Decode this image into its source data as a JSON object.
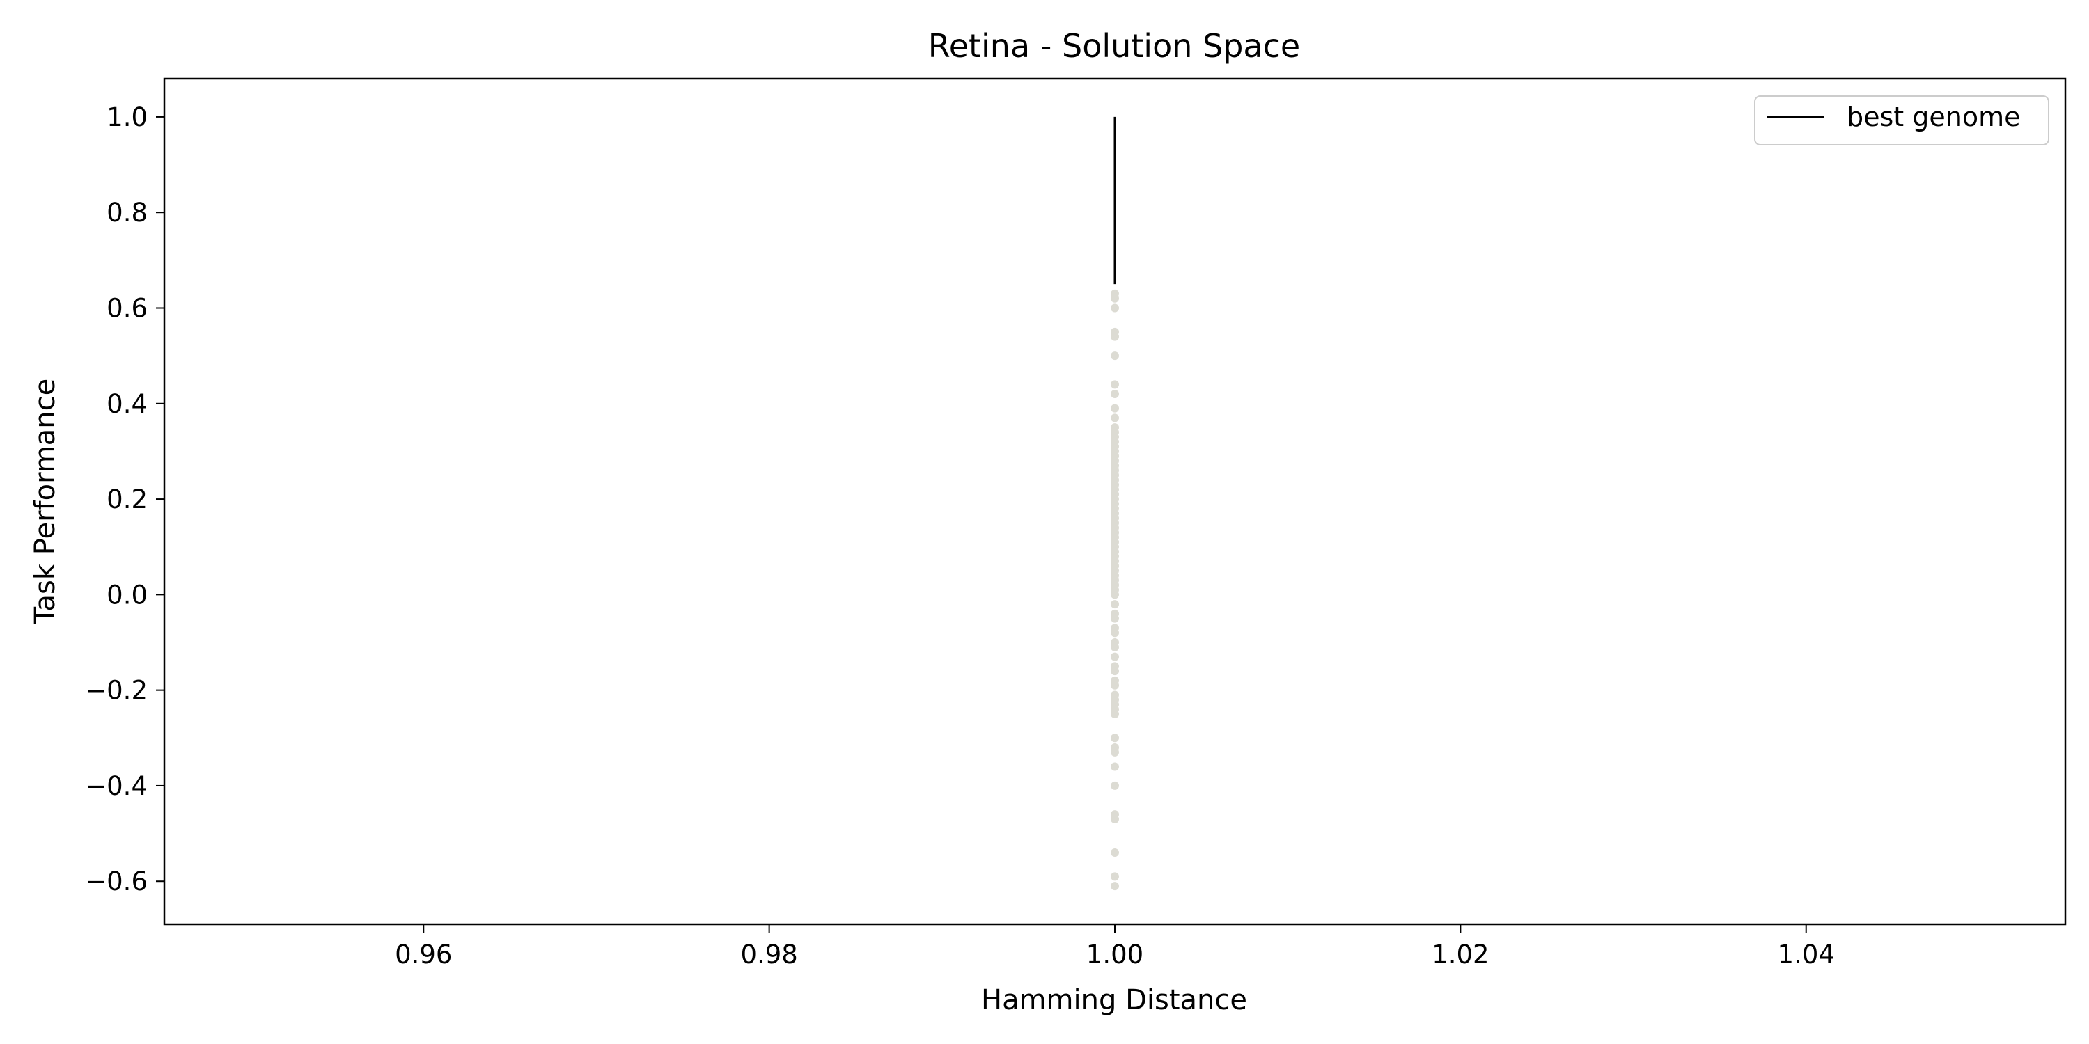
{
  "chart_data": {
    "type": "scatter",
    "title": "Retina - Solution Space",
    "xlabel": "Hamming Distance",
    "ylabel": "Task Performance",
    "xlim": [
      0.945,
      1.055
    ],
    "ylim": [
      -0.69,
      1.08
    ],
    "xticks": [
      0.96,
      0.98,
      1.0,
      1.02,
      1.04
    ],
    "xtick_labels": [
      "0.96",
      "0.98",
      "1.00",
      "1.02",
      "1.04"
    ],
    "yticks": [
      -0.6,
      -0.4,
      -0.2,
      0.0,
      0.2,
      0.4,
      0.6,
      0.8,
      1.0
    ],
    "ytick_labels": [
      "−0.6",
      "−0.4",
      "−0.2",
      "0.0",
      "0.2",
      "0.4",
      "0.6",
      "0.8",
      "1.0"
    ],
    "grid": false,
    "legend_position": "top-right",
    "series": [
      {
        "name": "best genome",
        "kind": "line",
        "color": "#000000",
        "points": [
          [
            1.0,
            0.65
          ],
          [
            1.0,
            1.0
          ]
        ]
      },
      {
        "kind": "scatter",
        "color": "#dcdbd3",
        "x": [
          1.0,
          1.0,
          1.0,
          1.0,
          1.0,
          1.0,
          1.0,
          1.0,
          1.0,
          1.0,
          1.0,
          1.0,
          1.0,
          1.0,
          1.0,
          1.0,
          1.0,
          1.0,
          1.0,
          1.0,
          1.0,
          1.0,
          1.0,
          1.0,
          1.0,
          1.0,
          1.0,
          1.0,
          1.0,
          1.0,
          1.0,
          1.0,
          1.0,
          1.0,
          1.0,
          1.0,
          1.0,
          1.0,
          1.0,
          1.0,
          1.0,
          1.0,
          1.0,
          1.0,
          1.0,
          1.0,
          1.0,
          1.0,
          1.0,
          1.0,
          1.0,
          1.0,
          1.0,
          1.0,
          1.0,
          1.0,
          1.0,
          1.0,
          1.0,
          1.0,
          1.0,
          1.0,
          1.0,
          1.0,
          1.0,
          1.0,
          1.0,
          1.0,
          1.0,
          1.0,
          1.0,
          1.0,
          1.0
        ],
        "y": [
          0.63,
          0.62,
          0.6,
          0.55,
          0.54,
          0.5,
          0.44,
          0.42,
          0.39,
          0.37,
          0.35,
          0.34,
          0.33,
          0.32,
          0.31,
          0.3,
          0.29,
          0.28,
          0.27,
          0.26,
          0.25,
          0.24,
          0.23,
          0.22,
          0.21,
          0.2,
          0.19,
          0.18,
          0.17,
          0.16,
          0.15,
          0.14,
          0.13,
          0.12,
          0.11,
          0.1,
          0.09,
          0.08,
          0.07,
          0.06,
          0.05,
          0.04,
          0.03,
          0.02,
          0.01,
          0.0,
          -0.02,
          -0.04,
          -0.05,
          -0.07,
          -0.08,
          -0.1,
          -0.11,
          -0.13,
          -0.15,
          -0.16,
          -0.18,
          -0.19,
          -0.21,
          -0.22,
          -0.23,
          -0.24,
          -0.25,
          -0.3,
          -0.32,
          -0.33,
          -0.36,
          -0.4,
          -0.46,
          -0.47,
          -0.54,
          -0.59,
          -0.61
        ]
      }
    ]
  }
}
